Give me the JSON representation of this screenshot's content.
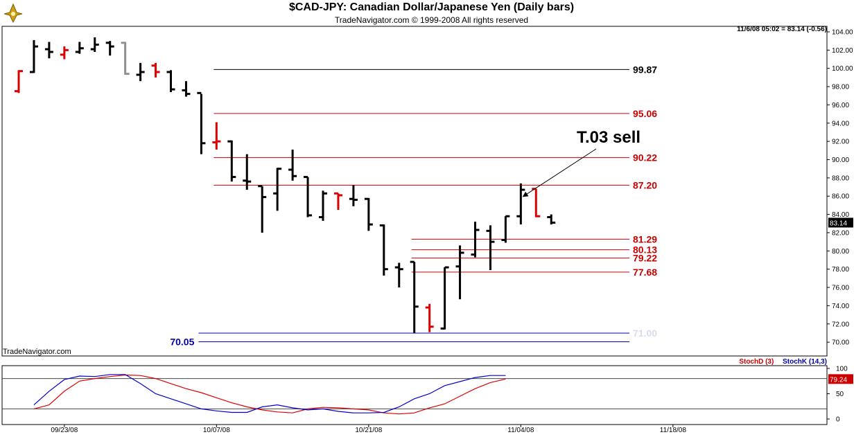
{
  "header": {
    "title": "$CAD-JPY:  Canadian Dollar/Japanese Yen  (Daily bars)",
    "subtitle": "TradeNavigator.com © 1999-2008 All rights reserved",
    "readout": "11/6/08 05:02 = 83.14 (-0.56)",
    "credit": "TradeNavigator.com"
  },
  "stoch_legend": {
    "d_label": "StochD (3)",
    "k_label": "StochK (14,3)"
  },
  "colors": {
    "up_bar": "#000000",
    "down_bar": "#dd0000",
    "neutral_bar": "#909090",
    "level_red": "#cc0000",
    "level_black": "#000000",
    "level_blue": "#0000aa",
    "stoch_d": "#dd0000",
    "stoch_k": "#0000cc"
  },
  "chart_data": [
    {
      "type": "ohlc",
      "title": "$CAD-JPY:  Canadian Dollar/Japanese Yen  (Daily bars)",
      "ylim": [
        69,
        104.5
      ],
      "yticks": [
        "70.00",
        "72.00",
        "74.00",
        "76.00",
        "78.00",
        "80.00",
        "82.00",
        "84.00",
        "86.00",
        "88.00",
        "90.00",
        "92.00",
        "94.00",
        "96.00",
        "98.00",
        "100.00",
        "102.00",
        "104.00"
      ],
      "xticks": [
        "09/23/08",
        "10/07/08",
        "10/21/08",
        "11/04/08",
        "11/18/08"
      ],
      "last_price_label": "83.14",
      "bars": [
        {
          "o": 97.5,
          "h": 99.8,
          "l": 97.3,
          "c": 99.7,
          "color": "red"
        },
        {
          "o": 99.6,
          "h": 103.1,
          "l": 99.5,
          "c": 102.4,
          "color": "black"
        },
        {
          "o": 102.1,
          "h": 102.9,
          "l": 101.1,
          "c": 101.8,
          "color": "black"
        },
        {
          "o": 101.5,
          "h": 102.4,
          "l": 101.0,
          "c": 102.0,
          "color": "red"
        },
        {
          "o": 101.8,
          "h": 102.9,
          "l": 101.6,
          "c": 102.2,
          "color": "black"
        },
        {
          "o": 102.1,
          "h": 103.4,
          "l": 101.8,
          "c": 102.6,
          "color": "black"
        },
        {
          "o": 102.8,
          "h": 103.0,
          "l": 101.4,
          "c": 102.4,
          "color": "black"
        },
        {
          "o": 102.8,
          "h": 102.9,
          "l": 99.3,
          "c": 99.4,
          "color": "gray"
        },
        {
          "o": 99.3,
          "h": 100.6,
          "l": 98.6,
          "c": 99.6,
          "color": "black"
        },
        {
          "o": 100.3,
          "h": 100.6,
          "l": 99.0,
          "c": 99.6,
          "color": "red"
        },
        {
          "o": 99.6,
          "h": 99.8,
          "l": 97.4,
          "c": 97.7,
          "color": "black"
        },
        {
          "o": 97.6,
          "h": 98.6,
          "l": 96.9,
          "c": 97.2,
          "color": "black"
        },
        {
          "o": 97.3,
          "h": 97.2,
          "l": 90.6,
          "c": 91.8,
          "color": "black"
        },
        {
          "o": 91.9,
          "h": 94.1,
          "l": 91.1,
          "c": 92.0,
          "color": "red"
        },
        {
          "o": 92.0,
          "h": 92.1,
          "l": 87.6,
          "c": 88.1,
          "color": "black"
        },
        {
          "o": 87.7,
          "h": 90.6,
          "l": 86.7,
          "c": 87.6,
          "color": "black"
        },
        {
          "o": 87.1,
          "h": 87.1,
          "l": 82.0,
          "c": 85.9,
          "color": "black"
        },
        {
          "o": 86.3,
          "h": 89.1,
          "l": 84.4,
          "c": 89.0,
          "color": "black"
        },
        {
          "o": 88.9,
          "h": 91.1,
          "l": 87.7,
          "c": 88.2,
          "color": "black"
        },
        {
          "o": 88.1,
          "h": 88.1,
          "l": 83.7,
          "c": 83.9,
          "color": "black"
        },
        {
          "o": 83.7,
          "h": 86.6,
          "l": 83.3,
          "c": 86.3,
          "color": "black"
        },
        {
          "o": 86.3,
          "h": 86.3,
          "l": 84.5,
          "c": 86.1,
          "color": "red"
        },
        {
          "o": 85.7,
          "h": 87.2,
          "l": 84.9,
          "c": 85.6,
          "color": "black"
        },
        {
          "o": 85.7,
          "h": 85.8,
          "l": 82.2,
          "c": 82.9,
          "color": "black"
        },
        {
          "o": 82.8,
          "h": 82.9,
          "l": 77.3,
          "c": 78.0,
          "color": "black"
        },
        {
          "o": 78.2,
          "h": 78.7,
          "l": 76.0,
          "c": 78.0,
          "color": "black"
        },
        {
          "o": 78.8,
          "h": 78.8,
          "l": 71.0,
          "c": 73.9,
          "color": "black"
        },
        {
          "o": 73.8,
          "h": 74.2,
          "l": 71.1,
          "c": 71.7,
          "color": "red"
        },
        {
          "o": 71.5,
          "h": 78.2,
          "l": 71.4,
          "c": 78.2,
          "color": "black"
        },
        {
          "o": 78.3,
          "h": 80.6,
          "l": 74.7,
          "c": 79.8,
          "color": "black"
        },
        {
          "o": 79.6,
          "h": 83.2,
          "l": 79.3,
          "c": 82.3,
          "color": "black"
        },
        {
          "o": 82.2,
          "h": 82.8,
          "l": 77.9,
          "c": 81.0,
          "color": "black"
        },
        {
          "o": 81.2,
          "h": 83.8,
          "l": 80.9,
          "c": 83.8,
          "color": "black"
        },
        {
          "o": 83.8,
          "h": 87.4,
          "l": 82.9,
          "c": 86.7,
          "color": "black"
        },
        {
          "o": 86.8,
          "h": 86.8,
          "l": 83.7,
          "c": 83.8,
          "color": "red"
        },
        {
          "o": 83.7,
          "h": 84.0,
          "l": 82.9,
          "c": 83.1,
          "color": "black"
        }
      ],
      "levels": [
        {
          "value": 99.87,
          "label": "99.87",
          "color": "black",
          "from_bar": 13
        },
        {
          "value": 95.06,
          "label": "95.06",
          "color": "red",
          "from_bar": 13
        },
        {
          "value": 90.22,
          "label": "90.22",
          "color": "red",
          "from_bar": 13
        },
        {
          "value": 87.2,
          "label": "87.20",
          "color": "red",
          "from_bar": 13
        },
        {
          "value": 81.29,
          "label": "81.29",
          "color": "red",
          "from_bar": 26
        },
        {
          "value": 80.13,
          "label": "80.13",
          "color": "red",
          "from_bar": 26
        },
        {
          "value": 79.22,
          "label": "79.22",
          "color": "red",
          "from_bar": 26
        },
        {
          "value": 77.68,
          "label": "77.68",
          "color": "red",
          "from_bar": 26
        },
        {
          "value": 71.0,
          "label": "71.00",
          "color": "blue",
          "from_bar": 12
        },
        {
          "value": 70.05,
          "label": "70.05",
          "color": "blue",
          "from_bar": 12,
          "label_side": "left"
        }
      ],
      "annotation": {
        "text": "T.03 sell",
        "target_bar": 33,
        "target_value": 86.0
      }
    },
    {
      "type": "line",
      "title": "StochD (3)  StochK (14,3)",
      "ylim": [
        0,
        100
      ],
      "yticks": [
        "0",
        "50",
        "100"
      ],
      "reference_lines": [
        80,
        20
      ],
      "last_value_label": "79.24",
      "series": [
        {
          "name": "StochD (3)",
          "color": "red",
          "values": [
            20,
            28,
            55,
            75,
            80,
            84,
            87,
            86,
            80,
            70,
            60,
            52,
            42,
            32,
            24,
            18,
            14,
            12,
            20,
            23,
            22,
            20,
            18,
            12,
            10,
            12,
            22,
            30,
            45,
            60,
            72,
            79
          ]
        },
        {
          "name": "StochK (14,3)",
          "color": "blue",
          "values": [
            28,
            55,
            78,
            85,
            84,
            88,
            88,
            70,
            50,
            40,
            30,
            20,
            16,
            13,
            13,
            24,
            28,
            22,
            18,
            20,
            15,
            12,
            12,
            13,
            24,
            40,
            50,
            66,
            74,
            82,
            86,
            86
          ]
        }
      ]
    }
  ]
}
